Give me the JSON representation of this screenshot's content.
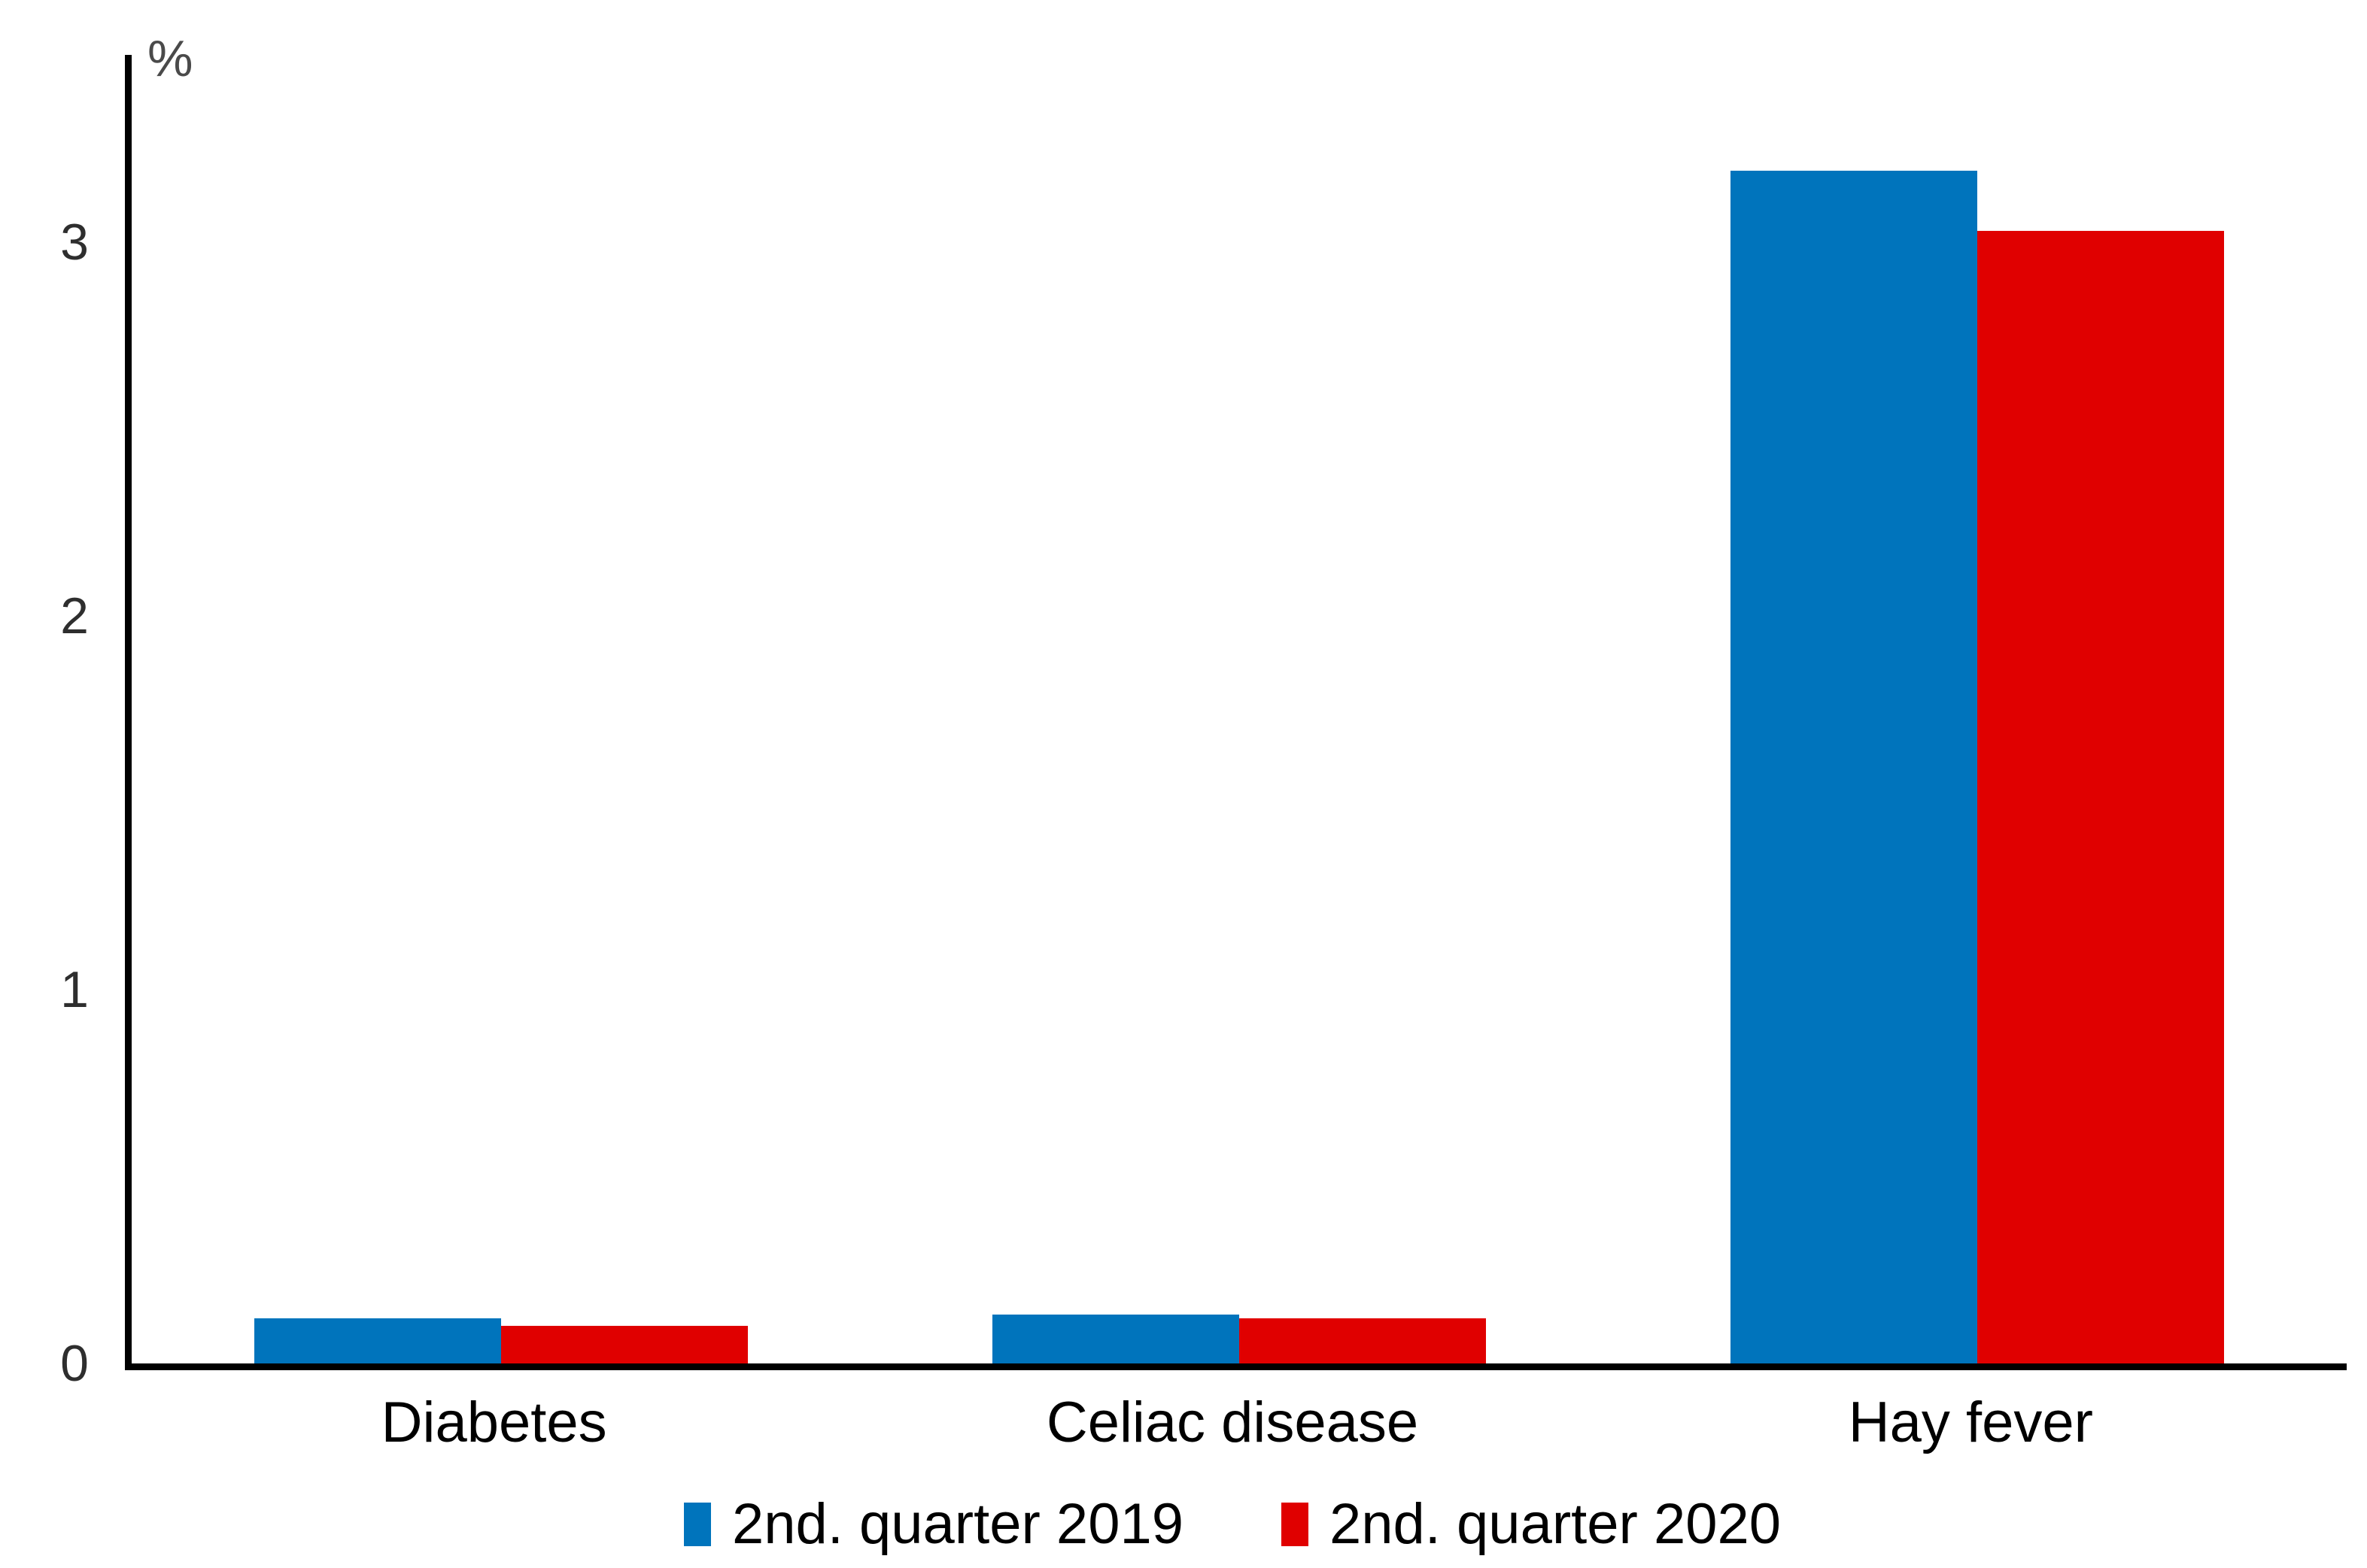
{
  "chart_data": {
    "type": "bar",
    "title": "",
    "xlabel": "",
    "ylabel": "%",
    "categories": [
      "Diabetes",
      "Celiac disease",
      "Hay fever"
    ],
    "series": [
      {
        "name": "2nd. quarter 2019",
        "color": "#0074BC",
        "values": [
          0.12,
          0.13,
          3.19
        ]
      },
      {
        "name": "2nd. quarter 2020",
        "color": "#E00000",
        "values": [
          0.1,
          0.12,
          3.03
        ]
      }
    ],
    "yticks": [
      0,
      1,
      2,
      3
    ],
    "ylim": [
      0,
      3.5
    ],
    "grid": false,
    "legend_position": "bottom",
    "axis_color": "#000000",
    "tick_label_color": "#2e2e2e"
  }
}
